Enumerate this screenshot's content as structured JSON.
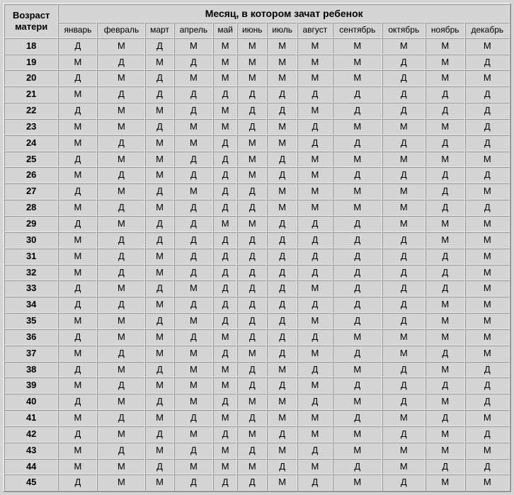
{
  "table": {
    "type": "table",
    "corner_header_line1": "Возраст",
    "corner_header_line2": "матери",
    "merged_header": "Месяц, в котором зачат ребенок",
    "columns": [
      "январь",
      "февраль",
      "март",
      "апрель",
      "май",
      "июнь",
      "июль",
      "август",
      "сентябрь",
      "октябрь",
      "ноябрь",
      "декабрь"
    ],
    "ages": [
      "18",
      "19",
      "20",
      "21",
      "22",
      "23",
      "24",
      "25",
      "26",
      "27",
      "28",
      "29",
      "30",
      "31",
      "32",
      "33",
      "34",
      "35",
      "36",
      "37",
      "38",
      "39",
      "40",
      "41",
      "42",
      "43",
      "44",
      "45"
    ],
    "rows": [
      [
        "Д",
        "М",
        "Д",
        "М",
        "М",
        "М",
        "М",
        "М",
        "М",
        "М",
        "М",
        "М"
      ],
      [
        "М",
        "Д",
        "М",
        "Д",
        "М",
        "М",
        "М",
        "М",
        "М",
        "Д",
        "М",
        "Д"
      ],
      [
        "Д",
        "М",
        "Д",
        "М",
        "М",
        "М",
        "М",
        "М",
        "М",
        "Д",
        "М",
        "М"
      ],
      [
        "М",
        "Д",
        "Д",
        "Д",
        "Д",
        "Д",
        "Д",
        "Д",
        "Д",
        "Д",
        "Д",
        "Д"
      ],
      [
        "Д",
        "М",
        "М",
        "Д",
        "М",
        "Д",
        "Д",
        "М",
        "Д",
        "Д",
        "Д",
        "Д"
      ],
      [
        "М",
        "М",
        "Д",
        "М",
        "М",
        "Д",
        "М",
        "Д",
        "М",
        "М",
        "М",
        "Д"
      ],
      [
        "М",
        "Д",
        "М",
        "М",
        "Д",
        "М",
        "М",
        "Д",
        "Д",
        "Д",
        "Д",
        "Д"
      ],
      [
        "Д",
        "М",
        "М",
        "Д",
        "Д",
        "М",
        "Д",
        "М",
        "М",
        "М",
        "М",
        "М"
      ],
      [
        "М",
        "Д",
        "М",
        "Д",
        "Д",
        "М",
        "Д",
        "М",
        "Д",
        "Д",
        "Д",
        "Д"
      ],
      [
        "Д",
        "М",
        "Д",
        "М",
        "Д",
        "Д",
        "М",
        "М",
        "М",
        "М",
        "Д",
        "М"
      ],
      [
        "М",
        "Д",
        "М",
        "Д",
        "Д",
        "Д",
        "М",
        "М",
        "М",
        "М",
        "Д",
        "Д"
      ],
      [
        "Д",
        "М",
        "Д",
        "Д",
        "М",
        "М",
        "Д",
        "Д",
        "Д",
        "М",
        "М",
        "М"
      ],
      [
        "М",
        "Д",
        "Д",
        "Д",
        "Д",
        "Д",
        "Д",
        "Д",
        "Д",
        "Д",
        "М",
        "М"
      ],
      [
        "М",
        "Д",
        "М",
        "Д",
        "Д",
        "Д",
        "Д",
        "Д",
        "Д",
        "Д",
        "Д",
        "М"
      ],
      [
        "М",
        "Д",
        "М",
        "Д",
        "Д",
        "Д",
        "Д",
        "Д",
        "Д",
        "Д",
        "Д",
        "М"
      ],
      [
        "Д",
        "М",
        "Д",
        "М",
        "Д",
        "Д",
        "Д",
        "М",
        "Д",
        "Д",
        "Д",
        "М"
      ],
      [
        "Д",
        "Д",
        "М",
        "Д",
        "Д",
        "Д",
        "Д",
        "Д",
        "Д",
        "Д",
        "М",
        "М"
      ],
      [
        "М",
        "М",
        "Д",
        "М",
        "Д",
        "Д",
        "Д",
        "М",
        "Д",
        "Д",
        "М",
        "М"
      ],
      [
        "Д",
        "М",
        "М",
        "Д",
        "М",
        "Д",
        "Д",
        "Д",
        "М",
        "М",
        "М",
        "М"
      ],
      [
        "М",
        "Д",
        "М",
        "М",
        "Д",
        "М",
        "Д",
        "М",
        "Д",
        "М",
        "Д",
        "М"
      ],
      [
        "Д",
        "М",
        "Д",
        "М",
        "М",
        "Д",
        "М",
        "Д",
        "М",
        "Д",
        "М",
        "Д"
      ],
      [
        "М",
        "Д",
        "М",
        "М",
        "М",
        "Д",
        "Д",
        "М",
        "Д",
        "Д",
        "Д",
        "Д"
      ],
      [
        "Д",
        "М",
        "Д",
        "М",
        "Д",
        "М",
        "М",
        "Д",
        "М",
        "Д",
        "М",
        "Д"
      ],
      [
        "М",
        "Д",
        "М",
        "Д",
        "М",
        "Д",
        "М",
        "М",
        "Д",
        "М",
        "Д",
        "М"
      ],
      [
        "Д",
        "М",
        "Д",
        "М",
        "Д",
        "М",
        "Д",
        "М",
        "М",
        "Д",
        "М",
        "Д"
      ],
      [
        "М",
        "Д",
        "М",
        "Д",
        "М",
        "Д",
        "М",
        "Д",
        "М",
        "М",
        "М",
        "М"
      ],
      [
        "М",
        "М",
        "Д",
        "М",
        "М",
        "М",
        "Д",
        "М",
        "Д",
        "М",
        "Д",
        "Д"
      ],
      [
        "Д",
        "М",
        "М",
        "Д",
        "Д",
        "Д",
        "М",
        "Д",
        "М",
        "Д",
        "М",
        "М"
      ]
    ],
    "styling": {
      "background_color": "#d4d4d4",
      "border_color_light": "#e8e8e8",
      "border_color_dark": "#808080",
      "text_color": "#000000",
      "header_font_weight": "bold",
      "data_font_weight": "normal",
      "font_family": "Arial",
      "header_font_size_pt": 10,
      "data_font_size_pt": 10,
      "column_count": 13,
      "row_count": 30
    }
  }
}
